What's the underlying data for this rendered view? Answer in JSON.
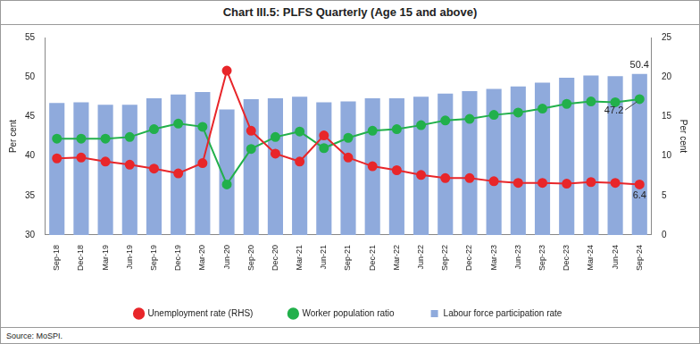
{
  "chart_data": {
    "type": "bar",
    "title": "Chart III.5: PLFS Quarterly (Age 15 and above)",
    "source": "Source: MoSPI.",
    "categories": [
      "Sep-18",
      "Dec-18",
      "Mar-19",
      "Jun-19",
      "Sep-19",
      "Dec-19",
      "Mar-20",
      "Jun-20",
      "Sep-20",
      "Dec-20",
      "Mar-21",
      "Jun-21",
      "Sep-21",
      "Dec-21",
      "Mar-22",
      "Jun-22",
      "Sep-22",
      "Dec-22",
      "Mar-23",
      "Jun-23",
      "Sep-23",
      "Dec-23",
      "Mar-24",
      "Jun-24",
      "Sep-24"
    ],
    "series": [
      {
        "name": "Labour force participation rate",
        "type": "bar",
        "color": "#8faadc",
        "values": [
          46.7,
          46.8,
          46.5,
          46.5,
          47.3,
          47.8,
          48.1,
          45.9,
          47.2,
          47.3,
          47.5,
          46.8,
          46.9,
          47.3,
          47.3,
          47.5,
          47.9,
          48.2,
          48.5,
          48.8,
          49.3,
          49.9,
          50.2,
          50.1,
          50.4
        ]
      },
      {
        "name": "Unemployment rate (RHS)",
        "type": "line",
        "color": "#e8262a",
        "marker": "circle",
        "axis": "y2",
        "values": [
          9.7,
          9.8,
          9.3,
          8.9,
          8.4,
          7.8,
          9.1,
          20.8,
          13.2,
          10.3,
          9.3,
          12.6,
          9.8,
          8.7,
          8.2,
          7.6,
          7.2,
          7.2,
          6.8,
          6.6,
          6.6,
          6.5,
          6.7,
          6.6,
          6.4
        ]
      },
      {
        "name": "Worker population ratio",
        "type": "line",
        "color": "#22b04b",
        "marker": "circle",
        "values": [
          42.2,
          42.2,
          42.2,
          42.4,
          43.4,
          44.1,
          43.7,
          36.4,
          40.9,
          42.4,
          43.1,
          41.0,
          42.3,
          43.2,
          43.4,
          43.9,
          44.5,
          44.7,
          45.2,
          45.5,
          46.0,
          46.6,
          46.9,
          46.8,
          47.2
        ]
      }
    ],
    "y_label": "Per cent",
    "y2_label": "Per cent",
    "ylim": [
      30,
      55
    ],
    "yticks": [
      30,
      35,
      40,
      45,
      50,
      55
    ],
    "y2lim": [
      0,
      25
    ],
    "y2ticks": [
      0,
      5,
      10,
      15,
      20,
      25
    ],
    "grid": false,
    "legend": "bottom",
    "annotations": [
      {
        "text": "50.4",
        "series": "Labour force participation rate",
        "category": "Sep-24"
      },
      {
        "text": "47.2",
        "series": "Worker population ratio",
        "category": "Sep-24"
      },
      {
        "text": "6.4",
        "series": "Unemployment rate (RHS)",
        "category": "Sep-24"
      }
    ]
  }
}
